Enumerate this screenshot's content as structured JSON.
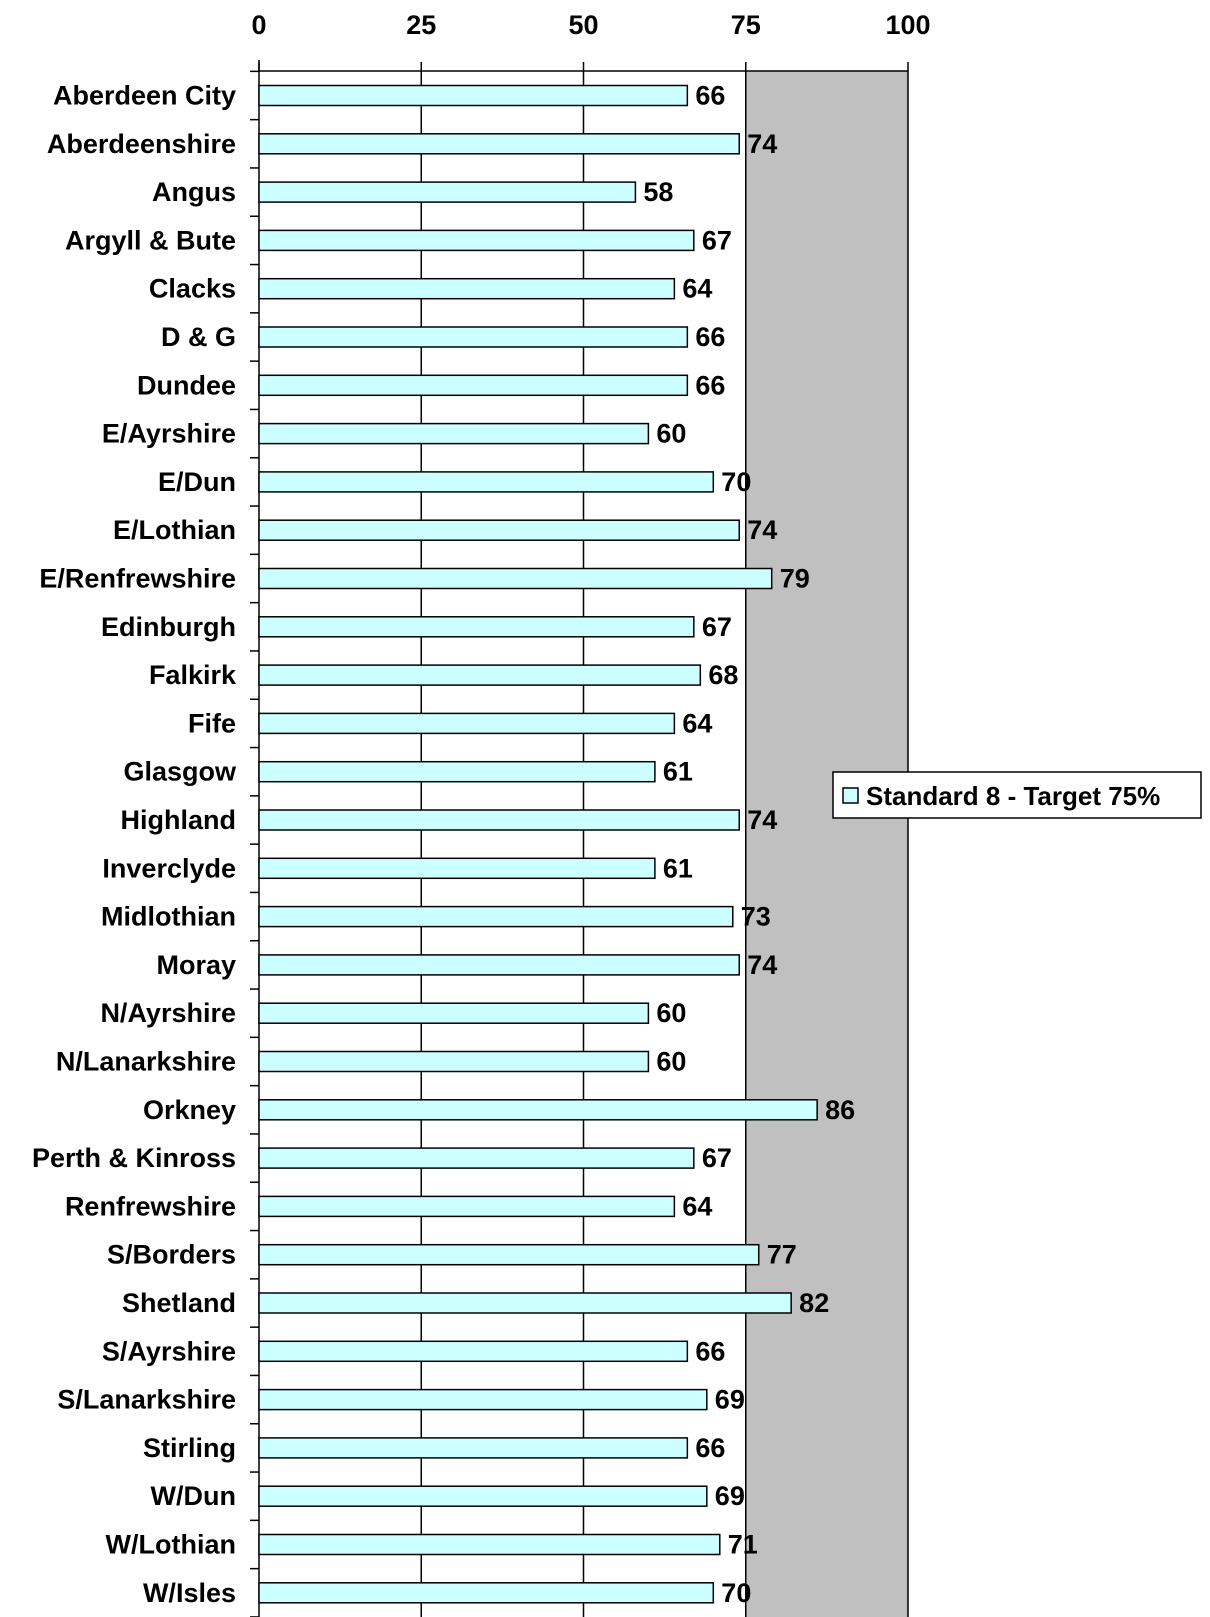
{
  "chart_data": {
    "type": "bar",
    "orientation": "horizontal",
    "categories": [
      "Aberdeen City",
      "Aberdeenshire",
      "Angus",
      "Argyll & Bute",
      "Clacks",
      "D & G",
      "Dundee",
      "E/Ayrshire",
      "E/Dun",
      "E/Lothian",
      "E/Renfrewshire",
      "Edinburgh",
      "Falkirk",
      "Fife",
      "Glasgow",
      "Highland",
      "Inverclyde",
      "Midlothian",
      "Moray",
      "N/Ayrshire",
      "N/Lanarkshire",
      "Orkney",
      "Perth & Kinross",
      "Renfrewshire",
      "S/Borders",
      "Shetland",
      "S/Ayrshire",
      "S/Lanarkshire",
      "Stirling",
      "W/Dun",
      "W/Lothian",
      "W/Isles"
    ],
    "series": [
      {
        "name": "Standard 8 - Target 75%",
        "color": "#ccffff",
        "values": [
          66,
          74,
          58,
          67,
          64,
          66,
          66,
          60,
          70,
          74,
          79,
          67,
          68,
          64,
          61,
          74,
          61,
          73,
          74,
          60,
          60,
          86,
          67,
          64,
          77,
          82,
          66,
          69,
          66,
          69,
          71,
          70
        ]
      }
    ],
    "x_ticks": [
      "0",
      "25",
      "50",
      "75",
      "100"
    ],
    "xlim": [
      0,
      100
    ],
    "target": 75,
    "target_band_color": "#c0c0c0",
    "grid": true,
    "legend_position": "right"
  }
}
